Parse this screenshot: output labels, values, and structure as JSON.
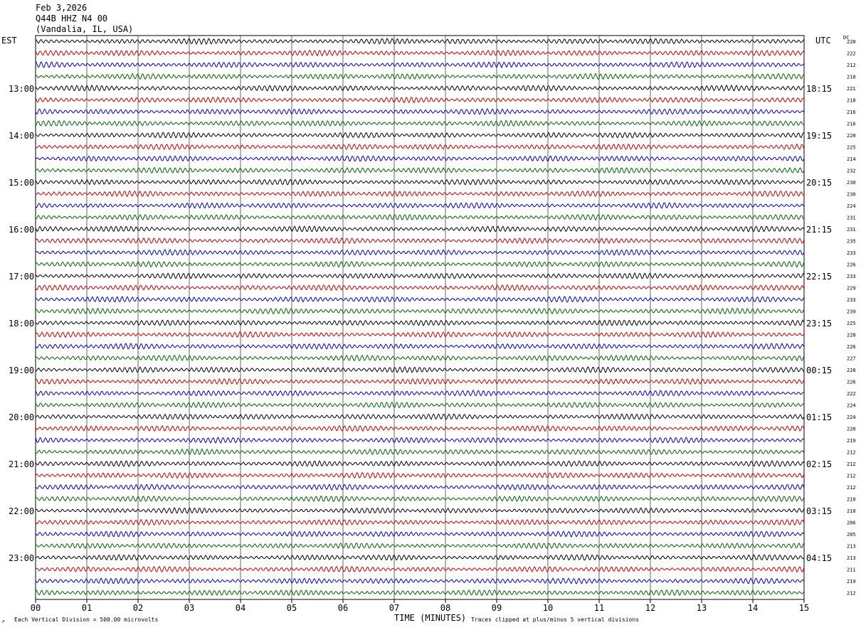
{
  "header": {
    "date": "Feb 3,2026",
    "station": "Q44B HHZ N4 00",
    "location": "(Vandalia, IL, USA)"
  },
  "timezones": {
    "left": "EST",
    "right": "UTC",
    "dc": "DC"
  },
  "footer": {
    "scale": "Each Vertical Division =  500.00 microvolts",
    "clip": "Traces clipped at plus/minus 5 vertical divisions",
    "mark": "↗"
  },
  "colors": {
    "trace_cycle": [
      "#000000",
      "#cc0000",
      "#0000cc",
      "#006400"
    ],
    "grid": "#000000"
  },
  "chart_data": {
    "type": "line",
    "title": "",
    "xlabel": "TIME (MINUTES)",
    "xlim": [
      0,
      15
    ],
    "x_ticks": [
      "00",
      "01",
      "02",
      "03",
      "04",
      "05",
      "06",
      "07",
      "08",
      "09",
      "10",
      "11",
      "12",
      "13",
      "14",
      "15"
    ],
    "grid": true,
    "row_count": 48,
    "hour_labels_left": [
      "13:00",
      "14:00",
      "15:00",
      "16:00",
      "17:00",
      "18:00",
      "19:00",
      "20:00",
      "21:00",
      "22:00",
      "23:00"
    ],
    "hour_labels_right": [
      "18:15",
      "19:15",
      "20:15",
      "21:15",
      "22:15",
      "23:15",
      "00:15",
      "01:15",
      "02:15",
      "03:15",
      "04:15"
    ],
    "dc_offsets": [
      220,
      222,
      212,
      218,
      221,
      218,
      216,
      216,
      220,
      225,
      214,
      232,
      230,
      230,
      224,
      231,
      231,
      235,
      233,
      226,
      233,
      229,
      233,
      239,
      225,
      228,
      226,
      227,
      228,
      226,
      222,
      224,
      224,
      220,
      219,
      212,
      212,
      212,
      212,
      210,
      210,
      206,
      205,
      213,
      213,
      211,
      219,
      212
    ]
  }
}
